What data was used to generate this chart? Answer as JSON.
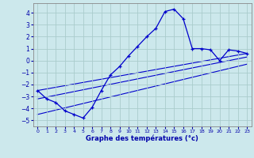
{
  "xlabel": "Graphe des températures (°c)",
  "bg_color": "#cce8ec",
  "grid_color": "#aacccc",
  "line_color": "#0000cc",
  "xlim": [
    -0.5,
    23.5
  ],
  "ylim": [
    -5.5,
    4.8
  ],
  "yticks": [
    -5,
    -4,
    -3,
    -2,
    -1,
    0,
    1,
    2,
    3,
    4
  ],
  "xticks": [
    0,
    1,
    2,
    3,
    4,
    5,
    6,
    7,
    8,
    9,
    10,
    11,
    12,
    13,
    14,
    15,
    16,
    17,
    18,
    19,
    20,
    21,
    22,
    23
  ],
  "series1_x": [
    0,
    1,
    2,
    3,
    4,
    5,
    6,
    7,
    8,
    9,
    10,
    11,
    12,
    13,
    14,
    15,
    16,
    17,
    18,
    19,
    20,
    21,
    22,
    23
  ],
  "series1_y": [
    -2.5,
    -3.2,
    -3.5,
    -4.2,
    -4.5,
    -4.8,
    -3.9,
    -2.5,
    -1.2,
    -0.5,
    0.4,
    1.2,
    2.0,
    2.7,
    4.1,
    4.3,
    3.5,
    1.0,
    1.0,
    0.9,
    0.0,
    0.9,
    0.8,
    0.6
  ],
  "series2_x": [
    0,
    23
  ],
  "series2_y": [
    -2.5,
    0.6
  ],
  "series3_x": [
    0,
    23
  ],
  "series3_y": [
    -3.2,
    0.3
  ],
  "series4_x": [
    0,
    23
  ],
  "series4_y": [
    -4.5,
    -0.3
  ]
}
